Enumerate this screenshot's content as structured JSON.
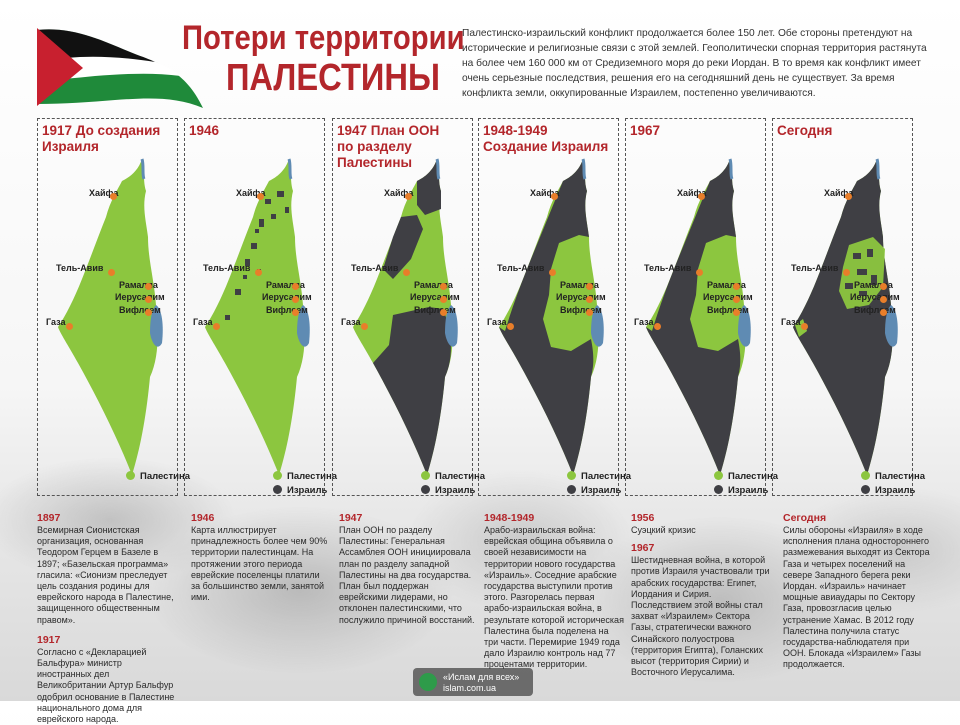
{
  "title": {
    "line1": "Потери территории",
    "line2": "ПАЛЕСТИНЫ"
  },
  "intro": "Палестинско-израильский конфликт продолжается более 150 лет. Обе стороны претендуют на исторические и религиозные связи с этой землей. Геополитически спорная территория растянута на более чем 160 000 км от Средиземного моря до реки Иордан. В то время как конфликт имеет очень серьезные последствия, решения его на сегодняшний день не существует. За время конфликта земли, оккупированные Израилем, постепенно увеличиваются.",
  "colors": {
    "palestine": "#8cc63f",
    "israel": "#3f3f44",
    "water": "#5f8bb3",
    "city": "#e87e2a",
    "accent": "#b3262b"
  },
  "legend": {
    "palestine": "Палестина",
    "israel": "Израиль"
  },
  "cities": {
    "haifa": "Хайфа",
    "telaviv": "Тель-Авив",
    "ramallah": "Рамалла",
    "jerusalem": "Иерусалим",
    "bethlehem": "Вифлеем",
    "gaza": "Газа"
  },
  "panels": [
    {
      "title_line1": "1917 До создания",
      "title_line2": "Израиля",
      "title_line3": ""
    },
    {
      "title_line1": "1946",
      "title_line2": "",
      "title_line3": ""
    },
    {
      "title_line1": "1947 План ООН",
      "title_line2": "по разделу",
      "title_line3": "Палестины"
    },
    {
      "title_line1": "1948-1949",
      "title_line2": "Создание Израиля",
      "title_line3": ""
    },
    {
      "title_line1": "1967",
      "title_line2": "",
      "title_line3": ""
    },
    {
      "title_line1": "Сегодня",
      "title_line2": "",
      "title_line3": ""
    }
  ],
  "texts": [
    {
      "year1": "1897",
      "text1": "Всемирная Сионистская организация, основанная Теодором Герцем в Базеле в 1897; «Базельская программа» гласила: «Сионизм преследует цель создания родины для еврейского народа в Палестине, защищенного общественным правом».",
      "year2": "1917",
      "text2": "Согласно с «Декларацией Бальфура» министр иностранных дел Великобритании Артур Бальфур одобрил основание в Палестине национального дома для еврейского народа."
    },
    {
      "year1": "1946",
      "text1": "Карта иллюстрирует принадлежность более чем 90% территории палестинцам. На протяжении этого периода еврейские поселенцы платили за большинство земли, занятой ими.",
      "year2": "",
      "text2": ""
    },
    {
      "year1": "1947",
      "text1": "План ООН по разделу Палестины: Генеральная Ассамблея ООН инициировала план по разделу западной Палестины на два государства. План был поддержан еврейскими лидерами, но отклонен палестинскими, что послужило причиной восстаний.",
      "year2": "",
      "text2": ""
    },
    {
      "year1": "1948-1949",
      "text1": "Арабо-израильская война: еврейская община объявила о своей независимости на территории нового государства «Израиль». Соседние арабские государства выступили против этого. Разгорелась первая арабо-израильская война, в результате которой историческая Палестина была поделена на три части. Перемирие 1949 года дало Израилю контроль над 77 процентами территории.",
      "year2": "",
      "text2": ""
    },
    {
      "year1": "1956",
      "text1": "Суэцкий кризис",
      "year2": "1967",
      "text2": "Шестидневная война, в которой против Израиля участвовали три арабских государства: Египет, Иордания и Сирия. Последствием этой войны стал захват «Израилем» Сектора Газы, стратегически важного Синайского полуострова (территория Египта), Голанских высот (территория Сирии) и Восточного Иерусалима."
    },
    {
      "year1": "Сегодня",
      "text1": "Силы обороны «Израиля» в ходе исполнения плана одностороннего размежевания выходят из Сектора Газа и четырех поселений на севере Западного берега реки Иордан. «Израиль» начинает мощные авиаудары по Сектору Газа, провозгласив целью устранение Хамас. В 2012 году Палестина получила статус государства-наблюдателя при ООН. Блокада «Израилем» Газы продолжается.",
      "year2": "",
      "text2": ""
    }
  ],
  "logo": {
    "line1": "«Ислам для всех»",
    "line2": "islam.com.ua"
  }
}
